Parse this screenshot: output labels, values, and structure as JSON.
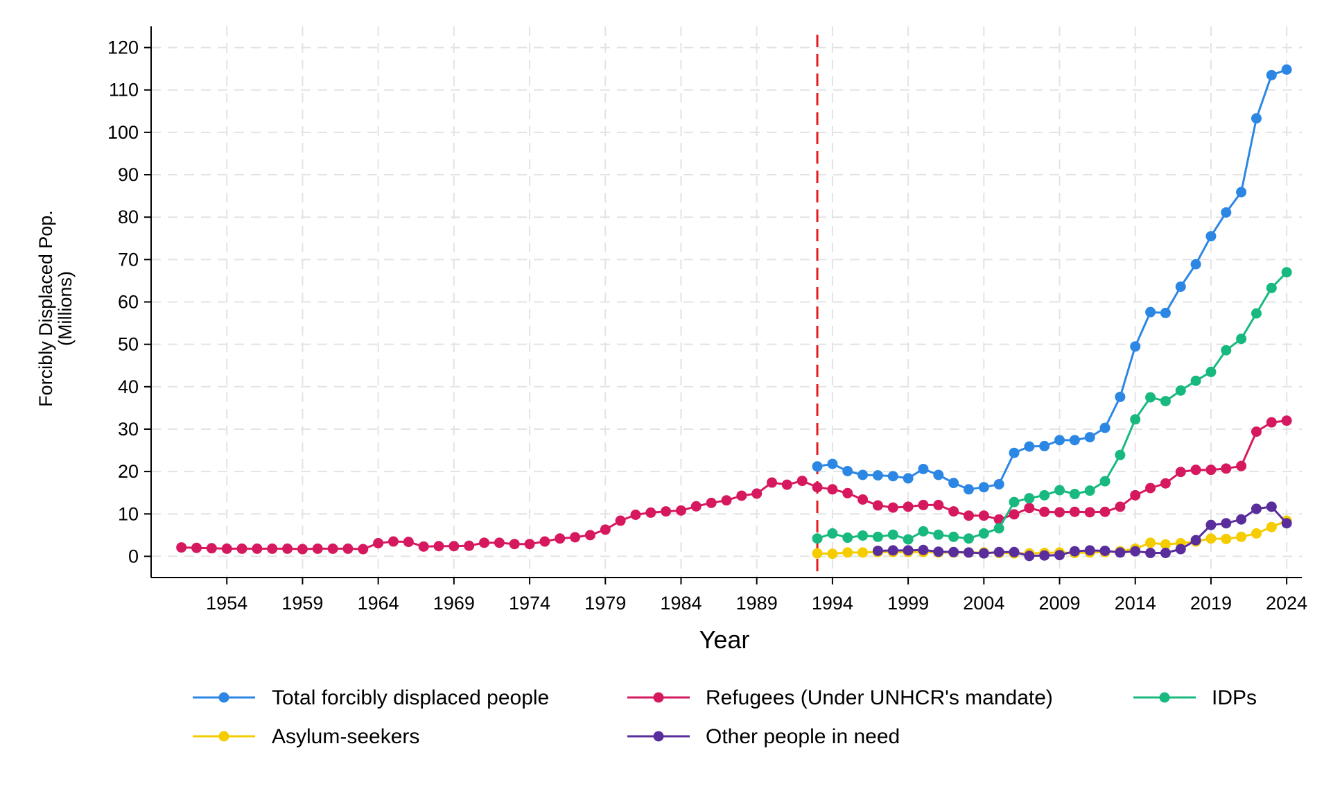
{
  "chart_data": {
    "type": "line",
    "title": "",
    "xlabel": "Year",
    "ylabel": "Forcibly Displaced Pop.",
    "ylabel_sub": "(Millions)",
    "xlim": [
      1949,
      2025
    ],
    "ylim": [
      -5,
      125
    ],
    "x_ticks": [
      1954,
      1959,
      1964,
      1969,
      1974,
      1979,
      1984,
      1989,
      1994,
      1999,
      2004,
      2009,
      2014,
      2019,
      2024
    ],
    "y_ticks": [
      0,
      10,
      20,
      30,
      40,
      50,
      60,
      70,
      80,
      90,
      100,
      110,
      120
    ],
    "grid": true,
    "reference_line": {
      "x": 1993,
      "color": "#e41a1c",
      "style": "dashed"
    },
    "legend_position": "bottom",
    "series": [
      {
        "name": "Total forcibly displaced people",
        "color": "#2b86e4",
        "x": [
          1993,
          1994,
          1995,
          1996,
          1997,
          1998,
          1999,
          2000,
          2001,
          2002,
          2003,
          2004,
          2005,
          2006,
          2007,
          2008,
          2009,
          2010,
          2011,
          2012,
          2013,
          2014,
          2015,
          2016,
          2017,
          2018,
          2019,
          2020,
          2021,
          2022,
          2023,
          2024
        ],
        "values": [
          21.2,
          21.8,
          20.1,
          19.2,
          19.1,
          18.9,
          18.4,
          20.6,
          19.2,
          17.3,
          15.8,
          16.3,
          17.0,
          24.4,
          25.9,
          26.0,
          27.4,
          27.4,
          28.1,
          30.3,
          37.6,
          49.5,
          57.6,
          57.4,
          63.6,
          68.9,
          75.5,
          81.1,
          85.9,
          103.3,
          113.5,
          114.8
        ]
      },
      {
        "name": "Refugees (Under UNHCR's mandate)",
        "color": "#d6185e",
        "x": [
          1951,
          1952,
          1953,
          1954,
          1955,
          1956,
          1957,
          1958,
          1959,
          1960,
          1961,
          1962,
          1963,
          1964,
          1965,
          1966,
          1967,
          1968,
          1969,
          1970,
          1971,
          1972,
          1973,
          1974,
          1975,
          1976,
          1977,
          1978,
          1979,
          1980,
          1981,
          1982,
          1983,
          1984,
          1985,
          1986,
          1987,
          1988,
          1989,
          1990,
          1991,
          1992,
          1993,
          1994,
          1995,
          1996,
          1997,
          1998,
          1999,
          2000,
          2001,
          2002,
          2003,
          2004,
          2005,
          2006,
          2007,
          2008,
          2009,
          2010,
          2011,
          2012,
          2013,
          2014,
          2015,
          2016,
          2017,
          2018,
          2019,
          2020,
          2021,
          2022,
          2023,
          2024
        ],
        "values": [
          2.1,
          2.0,
          1.9,
          1.8,
          1.8,
          1.8,
          1.8,
          1.8,
          1.7,
          1.8,
          1.8,
          1.8,
          1.7,
          3.1,
          3.5,
          3.4,
          2.3,
          2.4,
          2.4,
          2.5,
          3.2,
          3.2,
          2.9,
          2.9,
          3.5,
          4.2,
          4.5,
          5.0,
          6.3,
          8.4,
          9.8,
          10.3,
          10.6,
          10.8,
          11.8,
          12.6,
          13.2,
          14.3,
          14.8,
          17.4,
          16.9,
          17.8,
          16.3,
          15.8,
          14.9,
          13.4,
          12.0,
          11.5,
          11.7,
          12.1,
          12.1,
          10.6,
          9.6,
          9.6,
          8.7,
          9.9,
          11.4,
          10.5,
          10.4,
          10.5,
          10.4,
          10.5,
          11.7,
          14.4,
          16.1,
          17.2,
          19.9,
          20.4,
          20.4,
          20.7,
          21.3,
          29.4,
          31.6,
          32.0
        ]
      },
      {
        "name": "IDPs",
        "color": "#18b97e",
        "x": [
          1993,
          1994,
          1995,
          1996,
          1997,
          1998,
          1999,
          2000,
          2001,
          2002,
          2003,
          2004,
          2005,
          2006,
          2007,
          2008,
          2009,
          2010,
          2011,
          2012,
          2013,
          2014,
          2015,
          2016,
          2017,
          2018,
          2019,
          2020,
          2021,
          2022,
          2023,
          2024
        ],
        "values": [
          4.2,
          5.4,
          4.4,
          4.9,
          4.6,
          5.1,
          4.0,
          5.9,
          5.1,
          4.6,
          4.2,
          5.4,
          6.6,
          12.8,
          13.7,
          14.4,
          15.6,
          14.7,
          15.5,
          17.7,
          23.9,
          32.3,
          37.5,
          36.6,
          39.1,
          41.4,
          43.5,
          48.6,
          51.3,
          57.3,
          63.3,
          67.0
        ]
      },
      {
        "name": "Asylum-seekers",
        "color": "#f5cc00",
        "x": [
          1993,
          1994,
          1995,
          1996,
          1997,
          1998,
          1999,
          2000,
          2001,
          2002,
          2003,
          2004,
          2005,
          2006,
          2007,
          2008,
          2009,
          2010,
          2011,
          2012,
          2013,
          2014,
          2015,
          2016,
          2017,
          2018,
          2019,
          2020,
          2021,
          2022,
          2023,
          2024
        ],
        "values": [
          0.7,
          0.6,
          0.9,
          0.9,
          1.0,
          1.0,
          1.0,
          1.0,
          0.9,
          0.9,
          0.9,
          0.9,
          0.8,
          0.7,
          0.7,
          0.8,
          0.9,
          0.8,
          0.9,
          1.0,
          1.2,
          1.8,
          3.2,
          2.8,
          3.1,
          3.5,
          4.2,
          4.1,
          4.6,
          5.4,
          6.9,
          8.4
        ]
      },
      {
        "name": "Other people in need",
        "color": "#5a2d9c",
        "x": [
          1997,
          1998,
          1999,
          2000,
          2001,
          2002,
          2003,
          2004,
          2005,
          2006,
          2007,
          2008,
          2009,
          2010,
          2011,
          2012,
          2013,
          2014,
          2015,
          2016,
          2017,
          2018,
          2019,
          2020,
          2021,
          2022,
          2023,
          2024
        ],
        "values": [
          1.3,
          1.4,
          1.4,
          1.5,
          1.1,
          1.0,
          0.9,
          0.7,
          1.0,
          1.0,
          0.1,
          0.2,
          0.3,
          1.2,
          1.4,
          1.3,
          0.9,
          1.2,
          0.8,
          0.8,
          1.7,
          3.8,
          7.4,
          7.8,
          8.7,
          11.2,
          11.7,
          7.8
        ]
      }
    ]
  }
}
